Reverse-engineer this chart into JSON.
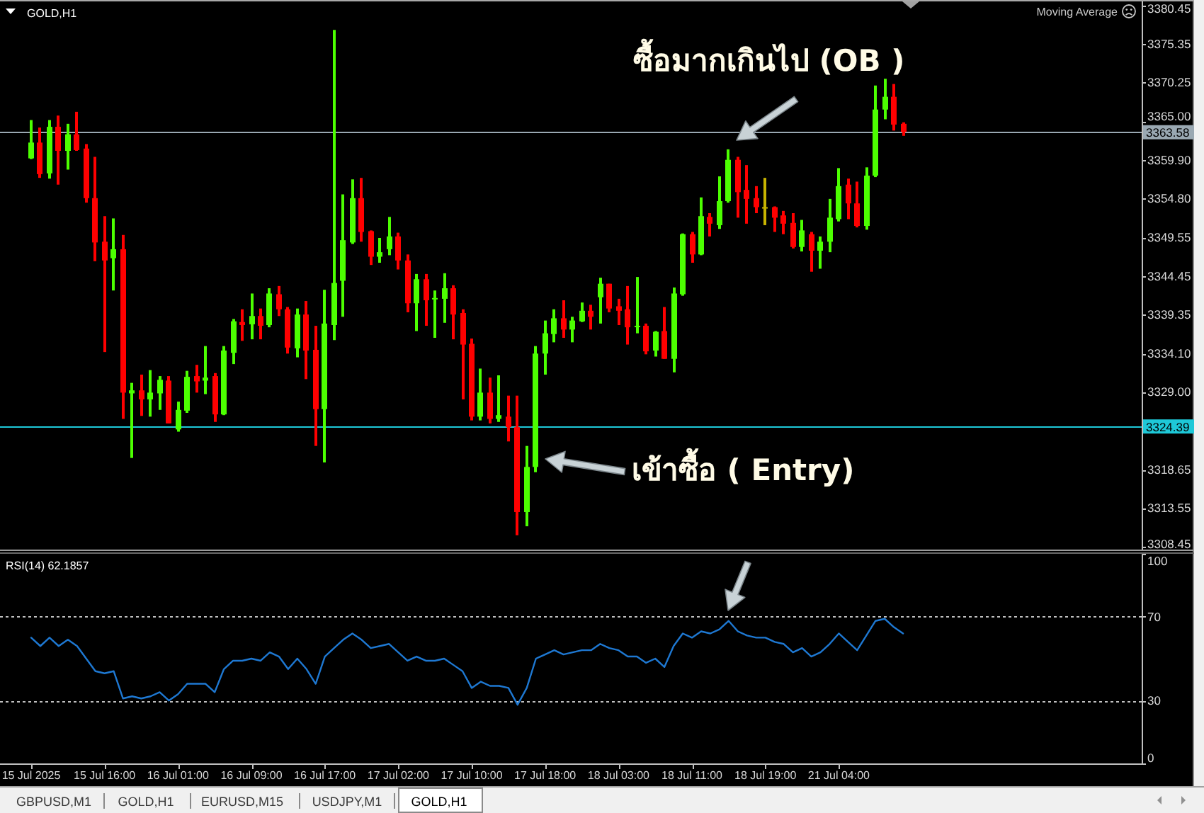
{
  "chart_data": [
    {
      "type": "candlestick",
      "title": "GOLD,H1",
      "annotations": [
        "Moving Average",
        "ซื้อมากเกินไป (OB )",
        "เข้าซื้อ ( Entry)",
        "GBPUSD,M1",
        "GOLD,H1",
        "EURUSD,M15",
        "USDJPY,M1",
        "GOLD,H1"
      ],
      "categories": [
        "15 Jul 2025",
        null,
        null,
        null,
        null,
        null,
        null,
        null,
        "15 Jul 16:00",
        null,
        null,
        null,
        null,
        null,
        null,
        null,
        "16 Jul 01:00",
        null,
        null,
        null,
        null,
        null,
        null,
        null,
        "16 Jul 09:00",
        null,
        null,
        null,
        null,
        null,
        null,
        null,
        "16 Jul 17:00",
        null,
        null,
        null,
        null,
        null,
        null,
        null,
        "17 Jul 02:00",
        null,
        null,
        null,
        null,
        null,
        null,
        null,
        "17 Jul 10:00",
        null,
        null,
        null,
        null,
        null,
        null,
        null,
        "17 Jul 18:00",
        null,
        null,
        null,
        null,
        null,
        null,
        null,
        "18 Jul 03:00",
        null,
        null,
        null,
        null,
        null,
        null,
        null,
        "18 Jul 11:00",
        null,
        null,
        null,
        null,
        null,
        null,
        null,
        "18 Jul 19:00",
        null,
        null,
        null,
        null,
        null,
        null,
        null,
        "21 Jul 04:00",
        null,
        null,
        null,
        null,
        null,
        null,
        null,
        null,
        null,
        null,
        null,
        null,
        null,
        null,
        null,
        null,
        null,
        null,
        null,
        null,
        null,
        null,
        null,
        null,
        null,
        null,
        null,
        null,
        null,
        null,
        null,
        null,
        null
      ],
      "ohlc": [
        [
          3360.1,
          3365.2,
          3360.0,
          3362.2
        ],
        [
          3362.2,
          3364.2,
          3357.5,
          3358.0
        ],
        [
          3358.1,
          3365.2,
          3357.4,
          3364.3
        ],
        [
          3364.3,
          3365.8,
          3356.6,
          3361.1
        ],
        [
          3361.1,
          3364.7,
          3358.6,
          3363.3
        ],
        [
          3363.3,
          3366.3,
          3361.1,
          3361.2
        ],
        [
          3361.4,
          3362.0,
          3354.2,
          3354.8
        ],
        [
          3354.8,
          3360.3,
          3346.4,
          3348.9
        ],
        [
          3349.0,
          3352.4,
          3334.3,
          3346.5
        ],
        [
          3346.8,
          3352.1,
          3342.5,
          3348.0
        ],
        [
          3348.0,
          3349.9,
          3325.4,
          3328.9
        ],
        [
          3328.8,
          3330.2,
          3320.2,
          3329.2
        ],
        [
          3329.2,
          3331.3,
          3325.8,
          3328.0
        ],
        [
          3328.0,
          3331.9,
          3325.7,
          3328.9
        ],
        [
          3328.8,
          3331.1,
          3326.6,
          3330.6
        ],
        [
          3330.5,
          3331.1,
          3324.8,
          3324.8
        ],
        [
          3324.0,
          3327.7,
          3323.7,
          3326.6
        ],
        [
          3326.5,
          3331.8,
          3326.2,
          3331.0
        ],
        [
          3331.1,
          3332.6,
          3328.9,
          3330.4
        ],
        [
          3330.5,
          3335.1,
          3328.7,
          3330.9
        ],
        [
          3331.1,
          3331.5,
          3325.0,
          3326.0
        ],
        [
          3326.0,
          3335.1,
          3325.9,
          3334.5
        ],
        [
          3334.2,
          3338.7,
          3332.7,
          3338.4
        ],
        [
          3338.3,
          3340.0,
          3335.8,
          3337.9
        ],
        [
          3338.0,
          3342.1,
          3336.0,
          3339.1
        ],
        [
          3339.1,
          3340.1,
          3336.0,
          3337.8
        ],
        [
          3337.9,
          3342.8,
          3337.6,
          3342.1
        ],
        [
          3342.0,
          3343.1,
          3339.1,
          3340.0
        ],
        [
          3340.0,
          3340.3,
          3334.1,
          3334.9
        ],
        [
          3334.8,
          3340.1,
          3333.6,
          3339.3
        ],
        [
          3339.3,
          3341.1,
          3330.7,
          3334.5
        ],
        [
          3334.6,
          3337.8,
          3321.8,
          3326.7
        ],
        [
          3326.7,
          3342.6,
          3319.6,
          3338.1
        ],
        [
          3337.9,
          3377.2,
          3335.9,
          3343.5
        ],
        [
          3343.8,
          3355.3,
          3339.0,
          3349.2
        ],
        [
          3348.9,
          3357.3,
          3348.7,
          3354.8
        ],
        [
          3354.8,
          3357.5,
          3349.0,
          3350.3
        ],
        [
          3350.4,
          3350.5,
          3345.9,
          3347.0
        ],
        [
          3347.0,
          3349.5,
          3346.2,
          3347.6
        ],
        [
          3348.0,
          3352.3,
          3347.2,
          3349.7
        ],
        [
          3349.7,
          3350.2,
          3345.3,
          3346.5
        ],
        [
          3346.5,
          3347.3,
          3339.6,
          3340.8
        ],
        [
          3340.8,
          3344.7,
          3337.1,
          3344.0
        ],
        [
          3344.0,
          3344.7,
          3337.8,
          3341.2
        ],
        [
          3341.4,
          3342.5,
          3336.2,
          3341.5
        ],
        [
          3341.4,
          3344.8,
          3338.2,
          3342.8
        ],
        [
          3342.8,
          3343.2,
          3336.0,
          3339.3
        ],
        [
          3339.5,
          3340.0,
          3328.0,
          3335.3
        ],
        [
          3335.4,
          3336.1,
          3325.2,
          3325.7
        ],
        [
          3325.7,
          3332.1,
          3325.2,
          3328.9
        ],
        [
          3328.9,
          3330.9,
          3324.8,
          3325.4
        ],
        [
          3325.4,
          3331.2,
          3325.0,
          3325.9
        ],
        [
          3325.7,
          3328.5,
          3322.4,
          3324.3
        ],
        [
          3324.3,
          3328.5,
          3309.9,
          3313.0
        ],
        [
          3313.0,
          3321.8,
          3311.1,
          3319.0
        ],
        [
          3319.0,
          3335.1,
          3318.3,
          3334.1
        ],
        [
          3334.1,
          3338.5,
          3331.3,
          3336.8
        ],
        [
          3336.7,
          3340.0,
          3335.6,
          3338.8
        ],
        [
          3338.8,
          3341.2,
          3336.2,
          3337.3
        ],
        [
          3337.3,
          3339.0,
          3335.6,
          3338.5
        ],
        [
          3338.4,
          3340.9,
          3338.3,
          3339.8
        ],
        [
          3339.8,
          3340.6,
          3337.3,
          3339.0
        ],
        [
          3341.6,
          3344.2,
          3338.1,
          3343.4
        ],
        [
          3343.4,
          3343.4,
          3339.6,
          3340.1
        ],
        [
          3340.4,
          3341.4,
          3337.9,
          3339.8
        ],
        [
          3340.0,
          3343.1,
          3335.3,
          3337.6
        ],
        [
          3337.7,
          3344.3,
          3336.8,
          3337.8
        ],
        [
          3337.8,
          3338.1,
          3334.0,
          3334.4
        ],
        [
          3334.5,
          3337.1,
          3333.7,
          3337.0
        ],
        [
          3337.1,
          3340.3,
          3333.4,
          3333.4
        ],
        [
          3333.4,
          3342.9,
          3331.6,
          3342.1
        ],
        [
          3342.0,
          3350.1,
          3341.8,
          3350.0
        ],
        [
          3350.0,
          3350.3,
          3346.2,
          3347.3
        ],
        [
          3347.3,
          3354.9,
          3347.2,
          3352.4
        ],
        [
          3352.3,
          3352.8,
          3349.7,
          3351.4
        ],
        [
          3351.2,
          3357.7,
          3350.7,
          3354.4
        ],
        [
          3354.4,
          3361.3,
          3354.2,
          3359.9
        ],
        [
          3359.9,
          3360.3,
          3352.2,
          3355.6
        ],
        [
          3355.9,
          3359.2,
          3351.4,
          3354.7
        ],
        [
          3354.8,
          3356.4,
          3352.8,
          3353.6
        ],
        [
          3353.6,
          3357.5,
          3351.2,
          3353.6
        ],
        [
          3353.6,
          3353.7,
          3350.3,
          3352.2
        ],
        [
          3352.5,
          3353.1,
          3350.0,
          3351.4
        ],
        [
          3351.5,
          3352.8,
          3348.1,
          3348.3
        ],
        [
          3348.3,
          3351.9,
          3347.7,
          3350.5
        ],
        [
          3350.0,
          3350.3,
          3345.0,
          3347.8
        ],
        [
          3347.8,
          3349.7,
          3345.4,
          3349.0
        ],
        [
          3349.0,
          3354.7,
          3347.6,
          3352.2
        ],
        [
          3352.0,
          3358.8,
          3351.7,
          3356.4
        ],
        [
          3356.6,
          3357.4,
          3352.0,
          3354.1
        ],
        [
          3354.1,
          3357.0,
          3350.9,
          3351.1
        ],
        [
          3351.1,
          3358.9,
          3350.6,
          3357.8
        ],
        [
          3357.8,
          3369.8,
          3357.6,
          3366.6
        ],
        [
          3366.6,
          3370.7,
          3365.3,
          3368.3
        ],
        [
          3368.3,
          3370.0,
          3363.8,
          3364.6
        ],
        [
          3364.7,
          3364.9,
          3363.1,
          3363.6
        ],
        null,
        null,
        null,
        null,
        null,
        null,
        null,
        null,
        null,
        null,
        null,
        null,
        null,
        null,
        null,
        null,
        null,
        null,
        null,
        null,
        null,
        null,
        null,
        null,
        null,
        null
      ],
      "colors": [
        "#4cff00",
        "#ff0000",
        "#4cff00",
        "#ff0000",
        "#4cff00",
        "#ff0000",
        "#ff0000",
        "#ff0000",
        "#ff0000",
        "#4cff00",
        "#ff0000",
        "#4cff00",
        "#ff0000",
        "#4cff00",
        "#4cff00",
        "#ff0000",
        "#4cff00",
        "#4cff00",
        "#ff0000",
        "#4cff00",
        "#ff0000",
        "#4cff00",
        "#4cff00",
        "#ff0000",
        "#4cff00",
        "#ff0000",
        "#4cff00",
        "#ff0000",
        "#ff0000",
        "#4cff00",
        "#ff0000",
        "#ff0000",
        "#4cff00",
        "#4cff00",
        "#4cff00",
        "#4cff00",
        "#ff0000",
        "#ff0000",
        "#4cff00",
        "#4cff00",
        "#ff0000",
        "#ff0000",
        "#4cff00",
        "#ff0000",
        "#4cff00",
        "#4cff00",
        "#ff0000",
        "#ff0000",
        "#ff0000",
        "#4cff00",
        "#ff0000",
        "#4cff00",
        "#ff0000",
        "#ff0000",
        "#4cff00",
        "#4cff00",
        "#4cff00",
        "#4cff00",
        "#ff0000",
        "#4cff00",
        "#4cff00",
        "#ff0000",
        "#4cff00",
        "#ff0000",
        "#ff0000",
        "#ff0000",
        "#4cff00",
        "#ff0000",
        "#4cff00",
        "#ff0000",
        "#4cff00",
        "#4cff00",
        "#ff0000",
        "#4cff00",
        "#ff0000",
        "#4cff00",
        "#4cff00",
        "#ff0000",
        "#ff0000",
        "#ff0000",
        "#c8b400",
        "#ff0000",
        "#ff0000",
        "#ff0000",
        "#4cff00",
        "#ff0000",
        "#4cff00",
        "#4cff00",
        "#4cff00",
        "#ff0000",
        "#ff0000",
        "#4cff00",
        "#4cff00",
        "#4cff00",
        "#ff0000",
        "#ff0000",
        null,
        null,
        null,
        null,
        null,
        null,
        null,
        null,
        null,
        null,
        null,
        null,
        null,
        null,
        null,
        null,
        null,
        null,
        null,
        null,
        null,
        null,
        null,
        null,
        null,
        null
      ],
      "ylim": [
        3308.0,
        3381.0
      ],
      "yticks": [
        {
          "value": 3308.45,
          "label": "3308.45"
        },
        {
          "value": 3313.55,
          "label": "3313.55"
        },
        {
          "value": 3318.65,
          "label": "3318.65"
        },
        {
          "value": 3329,
          "label": "3329.00"
        },
        {
          "value": 3334.1,
          "label": "3334.10"
        },
        {
          "value": 3339.35,
          "label": "3339.35"
        },
        {
          "value": 3344.45,
          "label": "3344.45"
        },
        {
          "value": 3349.55,
          "label": "3349.55"
        },
        {
          "value": 3354.8,
          "label": "3354.80"
        },
        {
          "value": 3359.9,
          "label": "3359.90"
        },
        {
          "value": 3365,
          "label": "3365.00"
        },
        {
          "value": 3370.25,
          "label": "3370.25"
        },
        {
          "value": 3375.35,
          "label": "3375.35"
        },
        {
          "value": 3380.45,
          "label": "3380.45"
        }
      ],
      "ref_lines": [
        {
          "axis": "y",
          "value": 3363.58,
          "label": "3363.58",
          "color": "#9aa8b2"
        },
        {
          "axis": "y",
          "value": 3324.39,
          "label": "3324.39",
          "color": "#1ec8d8"
        }
      ],
      "tick_labels": "y"
    },
    {
      "type": "line",
      "title": "RSI(14) 62.1857",
      "categories": [
        "15 Jul 2025",
        null,
        null,
        null,
        null,
        null,
        null,
        null,
        "15 Jul 16:00",
        null,
        null,
        null,
        null,
        null,
        null,
        null,
        "16 Jul 01:00",
        null,
        null,
        null,
        null,
        null,
        null,
        null,
        "16 Jul 09:00",
        null,
        null,
        null,
        null,
        null,
        null,
        null,
        "16 Jul 17:00",
        null,
        null,
        null,
        null,
        null,
        null,
        null,
        "17 Jul 02:00",
        null,
        null,
        null,
        null,
        null,
        null,
        null,
        "17 Jul 10:00",
        null,
        null,
        null,
        null,
        null,
        null,
        null,
        "17 Jul 18:00",
        null,
        null,
        null,
        null,
        null,
        null,
        null,
        "18 Jul 03:00",
        null,
        null,
        null,
        null,
        null,
        null,
        null,
        "18 Jul 11:00",
        null,
        null,
        null,
        null,
        null,
        null,
        null,
        "18 Jul 19:00",
        null,
        null,
        null,
        null,
        null,
        null,
        null,
        "21 Jul 04:00",
        null,
        null,
        null,
        null,
        null,
        null,
        null,
        null,
        null,
        null,
        null,
        null,
        null,
        null,
        null,
        null,
        null,
        null,
        null,
        null,
        null,
        null,
        null,
        null,
        null,
        null,
        null,
        null,
        null,
        null,
        null,
        null,
        null
      ],
      "values": [
        60,
        56,
        60,
        56,
        59,
        56,
        50,
        44,
        43,
        44,
        31,
        32,
        31,
        32,
        34,
        30,
        33,
        38,
        38,
        38,
        34,
        45,
        49,
        49,
        50,
        49,
        53,
        51,
        45,
        50,
        45,
        38,
        51,
        55,
        59,
        62,
        59,
        55,
        56,
        57,
        53,
        49,
        51,
        49,
        49,
        50,
        47,
        44,
        36,
        39,
        37,
        37,
        36,
        28,
        36,
        50,
        52,
        54,
        52,
        53,
        54,
        54,
        57,
        55,
        54,
        51,
        51,
        48,
        50,
        46,
        56,
        62,
        60,
        63,
        62,
        64,
        68,
        63,
        61,
        60,
        60,
        58,
        57,
        53,
        55,
        51,
        53,
        57,
        62,
        58,
        54,
        61,
        68,
        69,
        65,
        62,
        null,
        null,
        null,
        null,
        null,
        null,
        null,
        null,
        null,
        null,
        null,
        null,
        null,
        null,
        null,
        null,
        null,
        null,
        null,
        null,
        null,
        null,
        null,
        null,
        null,
        null
      ],
      "color": "#1e78d2",
      "ylim": [
        0,
        100
      ],
      "yticks": [
        0,
        30,
        70,
        100
      ],
      "ref_lines": [
        {
          "axis": "y",
          "value": 70,
          "color": "#c0c0c0",
          "line_style": "dotted"
        },
        {
          "axis": "y",
          "value": 30,
          "color": "#c0c0c0",
          "line_style": "dotted"
        }
      ]
    }
  ]
}
